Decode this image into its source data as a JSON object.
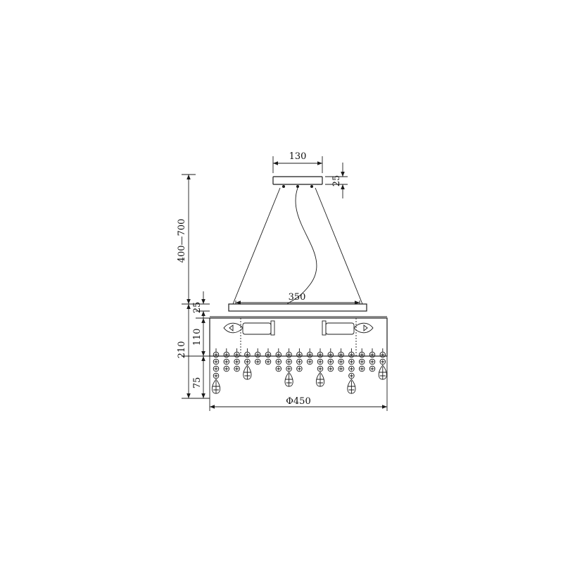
{
  "dimensions": {
    "canopy_width": "130",
    "canopy_height": "25",
    "suspension_length": "400—700",
    "frame_width": "350",
    "frame_height": "25",
    "lamp_height": "110",
    "body_height": "210",
    "crystal_drop": "75",
    "diameter": "Φ450"
  },
  "icons": {
    "arrowheads": "arrow-icon",
    "bulbs": "candle-bulb-icon",
    "crystals": "crystal-bead-icon",
    "pendants": "teardrop-pendant-icon"
  }
}
